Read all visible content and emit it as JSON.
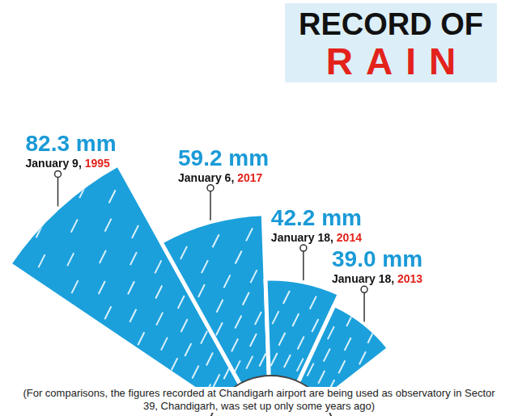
{
  "chart_data": {
    "type": "radial_bar",
    "title": "RECORD OF RAIN",
    "categories": [
      "January 9, 1995",
      "January 6, 2017",
      "January 18, 2014",
      "January 18, 2013"
    ],
    "values": [
      82.3,
      59.2,
      42.2,
      39.0
    ],
    "value_labels": [
      "82.3 mm",
      "59.2 mm",
      "42.2 mm",
      "39.0 mm"
    ],
    "data_labels": true,
    "color": "#1ba0dc",
    "grid": false,
    "tick_labels": false,
    "footnote": "(For comparisons, the figures recorded at Chandigarh airport are being used as observatory in Sector 39, Chandigarh, was set up only some years ago)"
  }
}
